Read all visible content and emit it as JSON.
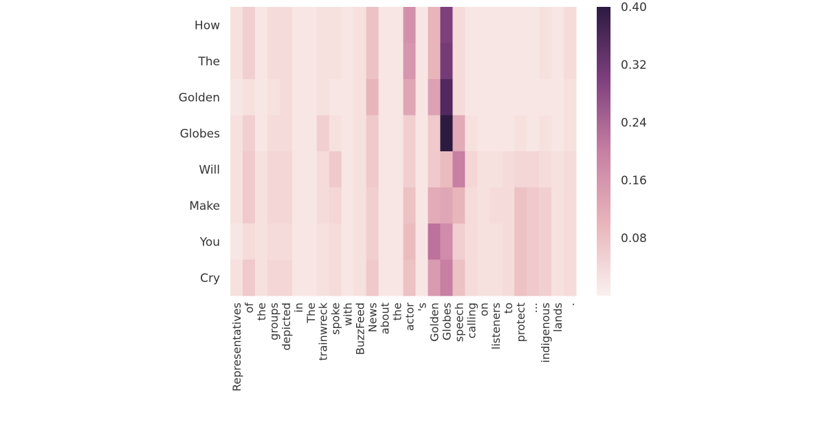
{
  "chart_data": {
    "type": "heatmap",
    "title": "",
    "xlabel": "",
    "ylabel": "",
    "rows": [
      "How",
      "The",
      "Golden",
      "Globes",
      "Will",
      "Make",
      "You",
      "Cry"
    ],
    "columns": [
      "Representatives",
      "of",
      "the",
      "groups",
      "depicted",
      "in",
      "The",
      "trainwreck",
      "spoke",
      "with",
      "BuzzFeed",
      "News",
      "about",
      "the",
      "actor",
      "'s",
      "Golden",
      "Globes",
      "speech",
      "calling",
      "on",
      "listeners",
      "to",
      "protect",
      "...",
      "indigenous",
      "lands",
      "."
    ],
    "values": [
      [
        0.03,
        0.06,
        0.02,
        0.04,
        0.04,
        0.02,
        0.02,
        0.03,
        0.03,
        0.02,
        0.03,
        0.08,
        0.02,
        0.02,
        0.17,
        0.02,
        0.1,
        0.3,
        0.04,
        0.02,
        0.02,
        0.02,
        0.02,
        0.02,
        0.02,
        0.03,
        0.02,
        0.04
      ],
      [
        0.03,
        0.06,
        0.02,
        0.04,
        0.04,
        0.02,
        0.02,
        0.03,
        0.03,
        0.02,
        0.03,
        0.08,
        0.02,
        0.02,
        0.16,
        0.02,
        0.1,
        0.31,
        0.04,
        0.02,
        0.02,
        0.02,
        0.02,
        0.02,
        0.02,
        0.03,
        0.02,
        0.04
      ],
      [
        0.02,
        0.03,
        0.02,
        0.03,
        0.04,
        0.02,
        0.02,
        0.03,
        0.02,
        0.02,
        0.03,
        0.1,
        0.02,
        0.02,
        0.13,
        0.02,
        0.14,
        0.35,
        0.04,
        0.02,
        0.02,
        0.02,
        0.02,
        0.02,
        0.02,
        0.02,
        0.02,
        0.03
      ],
      [
        0.03,
        0.06,
        0.02,
        0.04,
        0.04,
        0.02,
        0.02,
        0.06,
        0.03,
        0.02,
        0.03,
        0.07,
        0.02,
        0.02,
        0.06,
        0.02,
        0.07,
        0.4,
        0.12,
        0.03,
        0.02,
        0.02,
        0.02,
        0.03,
        0.02,
        0.03,
        0.02,
        0.03
      ],
      [
        0.03,
        0.07,
        0.03,
        0.05,
        0.05,
        0.02,
        0.02,
        0.04,
        0.07,
        0.02,
        0.03,
        0.07,
        0.02,
        0.02,
        0.06,
        0.02,
        0.07,
        0.09,
        0.2,
        0.05,
        0.03,
        0.03,
        0.04,
        0.05,
        0.05,
        0.04,
        0.03,
        0.04
      ],
      [
        0.03,
        0.07,
        0.03,
        0.05,
        0.05,
        0.02,
        0.02,
        0.04,
        0.05,
        0.02,
        0.03,
        0.06,
        0.02,
        0.02,
        0.08,
        0.02,
        0.12,
        0.13,
        0.1,
        0.04,
        0.03,
        0.04,
        0.04,
        0.08,
        0.07,
        0.06,
        0.03,
        0.04
      ],
      [
        0.02,
        0.04,
        0.03,
        0.04,
        0.04,
        0.02,
        0.02,
        0.03,
        0.04,
        0.02,
        0.03,
        0.06,
        0.02,
        0.02,
        0.09,
        0.02,
        0.22,
        0.18,
        0.06,
        0.04,
        0.03,
        0.03,
        0.04,
        0.08,
        0.07,
        0.06,
        0.03,
        0.04
      ],
      [
        0.03,
        0.07,
        0.03,
        0.05,
        0.05,
        0.02,
        0.02,
        0.03,
        0.04,
        0.02,
        0.03,
        0.07,
        0.02,
        0.02,
        0.08,
        0.02,
        0.15,
        0.2,
        0.08,
        0.04,
        0.03,
        0.03,
        0.04,
        0.08,
        0.07,
        0.06,
        0.03,
        0.04
      ]
    ],
    "colorbar": {
      "range": [
        0.0,
        0.4
      ],
      "ticks": [
        "0.40",
        "0.32",
        "0.24",
        "0.16",
        "0.08"
      ],
      "tick_values": [
        0.4,
        0.32,
        0.24,
        0.16,
        0.08
      ],
      "colormap": "cubehelix light (white → pink → purple → dark navy)"
    },
    "colors": {
      "low": "#faf0ee",
      "mid_low": "#e8b5bb",
      "mid": "#c77fa3",
      "mid_high": "#7e3f7e",
      "high": "#2c1a41"
    },
    "grid": false
  }
}
